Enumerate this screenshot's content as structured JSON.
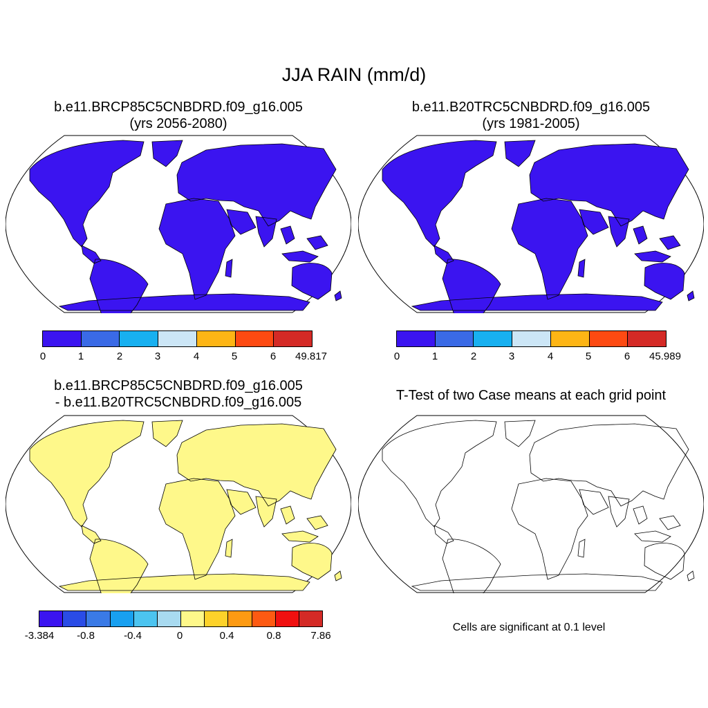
{
  "title": "JJA RAIN (mm/d)",
  "panels": {
    "top_left": {
      "line1": "b.e11.BRCP85C5CNBDRD.f09_g16.005",
      "line2": "(yrs 2056-2080)",
      "colorbar": {
        "colors": [
          "#3b14f0",
          "#3a6ae6",
          "#18b0f0",
          "#cce6f6",
          "#fdb515",
          "#fd4a12",
          "#d42a26"
        ],
        "labels": [
          "0",
          "1",
          "2",
          "3",
          "4",
          "5",
          "6",
          "49.817"
        ]
      }
    },
    "top_right": {
      "line1": "b.e11.B20TRC5CNBDRD.f09_g16.005",
      "line2": "(yrs 1981-2005)",
      "colorbar": {
        "colors": [
          "#3b14f0",
          "#3a6ae6",
          "#18b0f0",
          "#cce6f6",
          "#fdb515",
          "#fd4a12",
          "#d42a26"
        ],
        "labels": [
          "0",
          "1",
          "2",
          "3",
          "4",
          "5",
          "6",
          "45.989"
        ]
      }
    },
    "bottom_left": {
      "line1": "b.e11.BRCP85C5CNBDRD.f09_g16.005",
      "line2": "- b.e11.B20TRC5CNBDRD.f09_g16.005",
      "colorbar": {
        "colors": [
          "#3b14f0",
          "#2a4ce6",
          "#3a7ae6",
          "#18a0f0",
          "#4cc4f0",
          "#a8daf0",
          "#fef88a",
          "#fdd22a",
          "#fd9a12",
          "#fd5a12",
          "#f01010",
          "#d42a26"
        ],
        "labels": [
          "-3.384",
          "-0.8",
          "-0.4",
          "0",
          "0.4",
          "0.8",
          "7.86"
        ]
      }
    },
    "bottom_right": {
      "title": "T-Test of two Case means at each grid point",
      "note": "Cells are significant at 0.1 level",
      "color": "#ff0000"
    }
  }
}
